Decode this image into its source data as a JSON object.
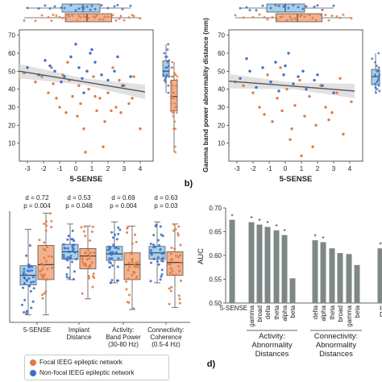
{
  "colors": {
    "focal": "#e07b45",
    "focal_fill": "#f3b18d",
    "nonfocal": "#3d6ecb",
    "nonfocal_fill": "#a6d0ea",
    "auc_bar": "#7f8787",
    "fit_line": "#555555",
    "ci_band": "#d9d9d9"
  },
  "panels": {
    "b": "b)",
    "d": "d)"
  },
  "legend": {
    "focal": "Focal IEEG epileptic network",
    "nonfocal": "Non-focal IEEG epileptic network"
  },
  "chart_data": [
    {
      "type": "scatter",
      "xlabel": "5-SENSE",
      "ylabel": "",
      "xlim": [
        -3.5,
        4.8
      ],
      "ylim": [
        0,
        73
      ],
      "xticks": [
        "-3",
        "-2",
        "-1",
        "0",
        "1",
        "2",
        "3",
        "4"
      ],
      "yticks": [
        "10",
        "20",
        "30",
        "40",
        "50",
        "60",
        "70"
      ],
      "fit_line": {
        "x": [
          -3.5,
          4.3
        ],
        "y": [
          50,
          38.5
        ]
      },
      "series": [
        {
          "name": "Focal IEEG epileptic network",
          "x": [
            -3.2,
            -2.5,
            -2.1,
            -1.7,
            -1.5,
            -1.2,
            -1.0,
            -0.8,
            -0.6,
            -0.4,
            -0.2,
            0.1,
            0.3,
            0.5,
            0.8,
            1.1,
            1.3,
            1.5,
            1.8,
            2.0,
            2.3,
            2.5,
            2.8,
            3.0,
            3.3,
            3.6,
            4.0,
            0.6,
            1.7,
            2.7,
            -0.5,
            0.2,
            1.2,
            3.5,
            -1.4,
            2.2
          ],
          "y": [
            49,
            44,
            47,
            38,
            52,
            35,
            30,
            48,
            27,
            45,
            36,
            25,
            32,
            18,
            40,
            47,
            28,
            35,
            22,
            38,
            52,
            30,
            27,
            42,
            32,
            47,
            18,
            5,
            8,
            45,
            55,
            42,
            36,
            35,
            43,
            28
          ]
        },
        {
          "name": "Non-focal IEEG epileptic network",
          "x": [
            -3.0,
            -2.3,
            -1.9,
            -1.3,
            -0.9,
            -0.7,
            -0.3,
            0.0,
            0.2,
            0.4,
            0.7,
            0.9,
            1.2,
            1.6,
            2.0,
            2.4,
            2.9,
            3.4,
            -1.6,
            0.5,
            1.0,
            2.6
          ],
          "y": [
            52,
            48,
            56,
            50,
            44,
            47,
            58,
            65,
            52,
            46,
            50,
            60,
            55,
            48,
            45,
            50,
            42,
            47,
            53,
            38,
            62,
            58
          ]
        }
      ]
    },
    {
      "type": "scatter",
      "xlabel": "5-SENSE",
      "ylabel": "Gamma band power abnormality distance (mm)",
      "xlim": [
        -3.5,
        4.8
      ],
      "ylim": [
        0,
        73
      ],
      "xticks": [
        "-3",
        "-2",
        "-1",
        "0",
        "1",
        "2",
        "3",
        "4"
      ],
      "yticks": [
        "10",
        "20",
        "30",
        "40",
        "50",
        "60",
        "70"
      ],
      "fit_line": {
        "x": [
          -3.5,
          4.3
        ],
        "y": [
          44.5,
          39
        ]
      },
      "series": [
        {
          "name": "Focal IEEG epileptic network",
          "x": [
            -3.1,
            -2.6,
            -2.0,
            -1.6,
            -1.1,
            -0.8,
            -0.5,
            -0.2,
            0.1,
            0.4,
            0.6,
            0.9,
            1.2,
            1.5,
            1.9,
            2.2,
            2.5,
            2.9,
            3.2,
            3.6,
            4.1,
            -1.3,
            0.3,
            1.7,
            2.7,
            3.4,
            -0.3,
            1.0
          ],
          "y": [
            44,
            42,
            38,
            30,
            48,
            22,
            35,
            28,
            40,
            18,
            31,
            45,
            25,
            36,
            20,
            42,
            30,
            27,
            38,
            15,
            33,
            26,
            12,
            8,
            23,
            46,
            52,
            3
          ]
        },
        {
          "name": "Non-focal IEEG epileptic network",
          "x": [
            -2.8,
            -2.2,
            -1.8,
            -1.4,
            -0.9,
            -0.6,
            -0.1,
            0.2,
            0.5,
            0.8,
            1.3,
            1.8,
            2.3,
            3.0,
            -0.4,
            0.0,
            1.1,
            2.0,
            -2.4
          ],
          "y": [
            46,
            50,
            41,
            52,
            44,
            55,
            48,
            60,
            43,
            47,
            40,
            45,
            42,
            38,
            39,
            53,
            50,
            48,
            57
          ]
        }
      ]
    },
    {
      "type": "box",
      "categories": [
        "5-SENSE",
        "Implant Distance",
        "Activity: Band Power (30-80 Hz)",
        "Connectivity: Coherence (0.5-4 Hz)"
      ],
      "annotations": [
        {
          "d": "d = 0.72",
          "p": "p = 0.004"
        },
        {
          "d": "d = 0.53",
          "p": "p = 0.048"
        },
        {
          "d": "d = 0.69",
          "p": "p = 0.004"
        },
        {
          "d": "d = 0.63",
          "p": "p = 0.03"
        }
      ],
      "ylim": [
        -0.02,
        1.02
      ],
      "series": [
        {
          "name": "Non-focal IEEG epileptic network",
          "boxes": [
            [
              0.05,
              0.33,
              0.42,
              0.51,
              0.85
            ],
            [
              0.38,
              0.57,
              0.64,
              0.71,
              0.9
            ],
            [
              0.35,
              0.56,
              0.62,
              0.69,
              0.92
            ],
            [
              0.35,
              0.57,
              0.63,
              0.69,
              0.92
            ]
          ]
        },
        {
          "name": "Focal IEEG epileptic network",
          "boxes": [
            [
              0.05,
              0.38,
              0.52,
              0.7,
              1.0
            ],
            [
              0.2,
              0.48,
              0.6,
              0.67,
              0.88
            ],
            [
              0.1,
              0.38,
              0.52,
              0.63,
              0.88
            ],
            [
              0.12,
              0.42,
              0.54,
              0.64,
              0.9
            ]
          ]
        }
      ]
    },
    {
      "type": "bar",
      "ylabel": "AUC",
      "ylim": [
        0.5,
        0.7
      ],
      "yticks": [
        "0.50",
        "0.55",
        "0.60",
        "0.65",
        "0.70"
      ],
      "categories": [
        "5-SENSE",
        "gamma",
        "broad",
        "delta",
        "theta",
        "alpha",
        "beta",
        "delta",
        "alpha",
        "theta",
        "broad",
        "gamma",
        "beta",
        "Implant Distance"
      ],
      "values": [
        0.675,
        0.67,
        0.665,
        0.66,
        0.653,
        0.643,
        0.552,
        0.632,
        0.628,
        0.615,
        0.605,
        0.603,
        0.58,
        0.615
      ],
      "significant": [
        true,
        true,
        true,
        true,
        true,
        true,
        false,
        true,
        true,
        false,
        false,
        false,
        false,
        true
      ],
      "groups": [
        {
          "label": "Activity: Abnormality Distances",
          "from": 1,
          "to": 6
        },
        {
          "label": "Connectivity: Abnormality Distances",
          "from": 7,
          "to": 12
        }
      ]
    }
  ]
}
